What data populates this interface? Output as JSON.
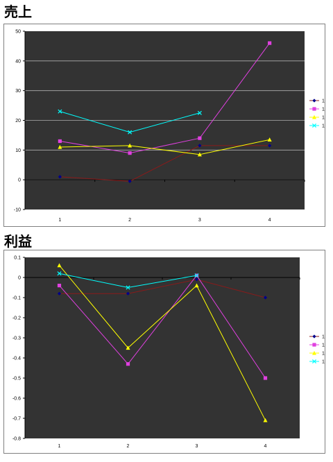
{
  "chart_data": [
    {
      "type": "line",
      "title": "売上",
      "categories": [
        "1",
        "2",
        "3",
        "4"
      ],
      "ylim": [
        -10,
        50
      ],
      "yticks": [
        -10,
        0,
        10,
        20,
        30,
        40,
        50
      ],
      "ytick_labels": [
        "-10",
        "0",
        "10",
        "20",
        "30",
        "40",
        "50"
      ],
      "grid": true,
      "legend": "right",
      "plot_background": "#333333",
      "series": [
        {
          "name": "12",
          "color": "#8b1a1a",
          "marker": "diamond",
          "marker_color": "#00008b",
          "values": [
            1,
            -0.5,
            11.5,
            11.5
          ]
        },
        {
          "name": "13",
          "color": "#e040e0",
          "marker": "square",
          "marker_color": "#e040e0",
          "values": [
            13,
            9,
            14,
            46
          ]
        },
        {
          "name": "14",
          "color": "#ffff00",
          "marker": "triangle",
          "marker_color": "#ffff00",
          "values": [
            11,
            11.5,
            8.5,
            13.5
          ]
        },
        {
          "name": "15",
          "color": "#00ffff",
          "marker": "cross",
          "marker_color": "#00ffff",
          "values": [
            23,
            16,
            22.5,
            null
          ]
        }
      ]
    },
    {
      "type": "line",
      "title": "利益",
      "categories": [
        "1",
        "2",
        "3",
        "4"
      ],
      "ylim": [
        -0.8,
        0.1
      ],
      "yticks": [
        -0.8,
        -0.7,
        -0.6,
        -0.5,
        -0.4,
        -0.3,
        -0.2,
        -0.1,
        0,
        0.1
      ],
      "ytick_labels": [
        "-0.8",
        "-0.7",
        "-0.6",
        "-0.5",
        "-0.4",
        "-0.3",
        "-0.2",
        "-0.1",
        "0",
        "0.1"
      ],
      "grid": false,
      "legend": "right",
      "plot_background": "#333333",
      "series": [
        {
          "name": "12",
          "color": "#8b1a1a",
          "marker": "diamond",
          "marker_color": "#00008b",
          "values": [
            -0.08,
            -0.08,
            -0.01,
            -0.1
          ]
        },
        {
          "name": "13",
          "color": "#e040e0",
          "marker": "square",
          "marker_color": "#e040e0",
          "values": [
            -0.04,
            -0.43,
            0.01,
            -0.5
          ]
        },
        {
          "name": "14",
          "color": "#ffff00",
          "marker": "triangle",
          "marker_color": "#ffff00",
          "values": [
            0.06,
            -0.35,
            -0.04,
            -0.71
          ]
        },
        {
          "name": "15",
          "color": "#00ffff",
          "marker": "cross",
          "marker_color": "#00ffff",
          "values": [
            0.02,
            -0.05,
            0.01,
            null
          ]
        }
      ]
    }
  ]
}
